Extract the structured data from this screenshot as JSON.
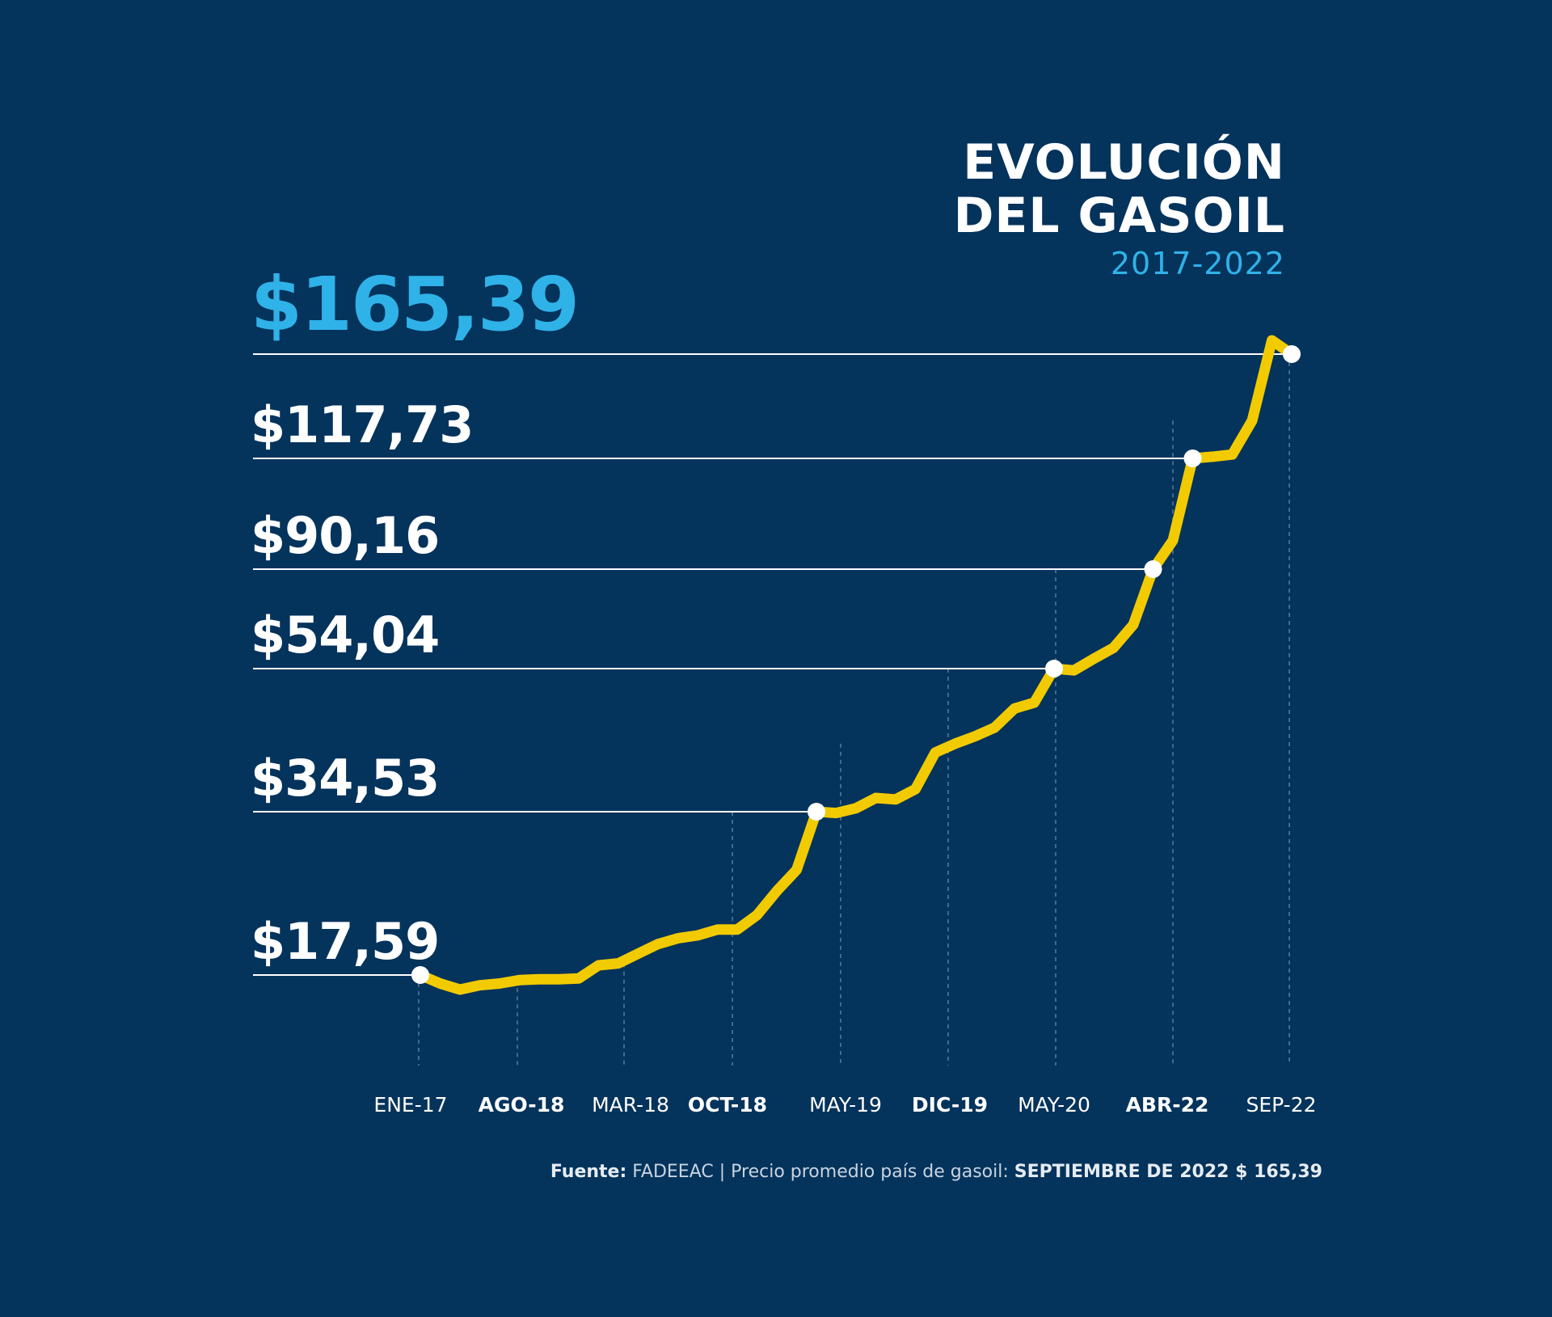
{
  "title": {
    "line1": "EVOLUCIÓN",
    "line2": "DEL GASOIL",
    "period": "2017-2022"
  },
  "footer": {
    "source_label": "Fuente:",
    "source_name": "FADEEAC",
    "separator": "|",
    "note": "Precio promedio país de gasoil:",
    "highlight": "SEPTIEMBRE DE 2022 $ 165,39"
  },
  "colors": {
    "background": "#04335c",
    "line": "#f1cb00",
    "accent": "#2fb2e8",
    "text": "#ffffff"
  },
  "chart_data": {
    "type": "line",
    "title": "EVOLUCIÓN DEL GASOIL",
    "subtitle": "2017-2022",
    "x_ticks": [
      {
        "label": "ENE-17",
        "bold": false
      },
      {
        "label": "AGO-18",
        "bold": true
      },
      {
        "label": "MAR-18",
        "bold": false
      },
      {
        "label": "OCT-18",
        "bold": true
      },
      {
        "label": "MAY-19",
        "bold": false
      },
      {
        "label": "DIC-19",
        "bold": true
      },
      {
        "label": "MAY-20",
        "bold": false
      },
      {
        "label": "ABR-22",
        "bold": true
      },
      {
        "label": "SEP-22",
        "bold": false
      }
    ],
    "price_labels": [
      {
        "label": "$17,59",
        "value": 17.59,
        "highlight": false
      },
      {
        "label": "$34,53",
        "value": 34.53,
        "highlight": false
      },
      {
        "label": "$54,04",
        "value": 54.04,
        "highlight": false
      },
      {
        "label": "$90,16",
        "value": 90.16,
        "highlight": false
      },
      {
        "label": "$117,73",
        "value": 117.73,
        "highlight": false
      },
      {
        "label": "$165,39",
        "value": 165.39,
        "highlight": true
      }
    ],
    "series": [
      {
        "values": [
          17.59,
          16.6,
          15.9,
          16.4,
          16.6,
          17.0,
          17.1,
          17.1,
          17.2,
          18.6,
          18.8,
          19.8,
          20.8,
          21.4,
          21.7,
          22.3,
          22.3,
          23.8,
          26.3,
          28.5,
          34.53,
          34.4,
          35.0,
          36.4,
          36.2,
          37.6,
          42.6,
          43.8,
          44.8,
          46.0,
          48.6,
          49.4,
          54.04,
          53.8,
          57.6,
          61.6,
          70.0,
          90.16,
          97.3,
          117.73,
          118.5,
          119.5,
          135.0,
          167.7,
          165.39
        ],
        "markers": [
          {
            "index": 0,
            "value": 17.59
          },
          {
            "index": 20,
            "value": 34.53
          },
          {
            "index": 32,
            "value": 54.04
          },
          {
            "index": 37,
            "value": 90.16
          },
          {
            "index": 39,
            "value": 117.73
          },
          {
            "index": 44,
            "value": 165.39
          }
        ]
      }
    ],
    "grid": false,
    "legend": "none"
  }
}
